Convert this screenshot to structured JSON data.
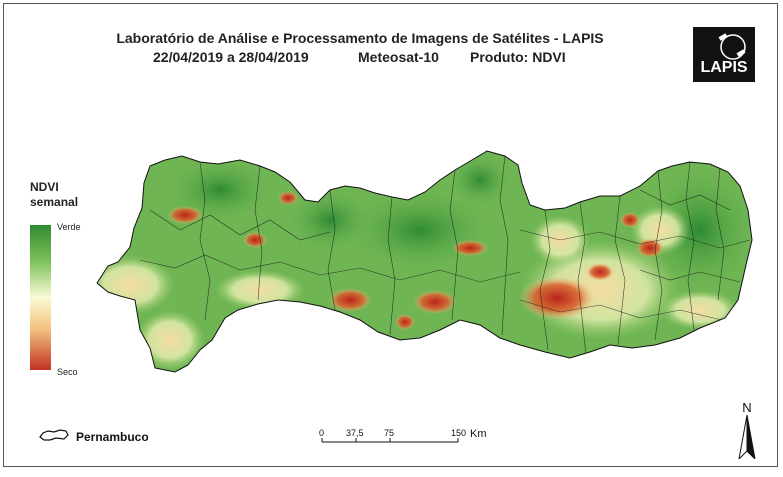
{
  "header": {
    "title": "Laboratório de Análise e Processamento de Imagens de Satélites - LAPIS",
    "dates": "22/04/2019  a 28/04/2019",
    "satellite": "Meteosat-10",
    "product": "Produto: NDVI"
  },
  "logo": {
    "text": "LAPIS"
  },
  "legend": {
    "title_line1": "NDVI",
    "title_line2": "semanal",
    "top_label": "Verde",
    "bottom_label": "Seco",
    "colors": [
      "#2f8a2f",
      "#7dc05a",
      "#fbfbd5",
      "#f2c07e",
      "#c13222"
    ]
  },
  "inset": {
    "label": "Pernambuco"
  },
  "scale": {
    "ticks": [
      "0",
      "37,5",
      "75",
      "150"
    ],
    "unit": "Km"
  },
  "north": {
    "label": "N"
  }
}
